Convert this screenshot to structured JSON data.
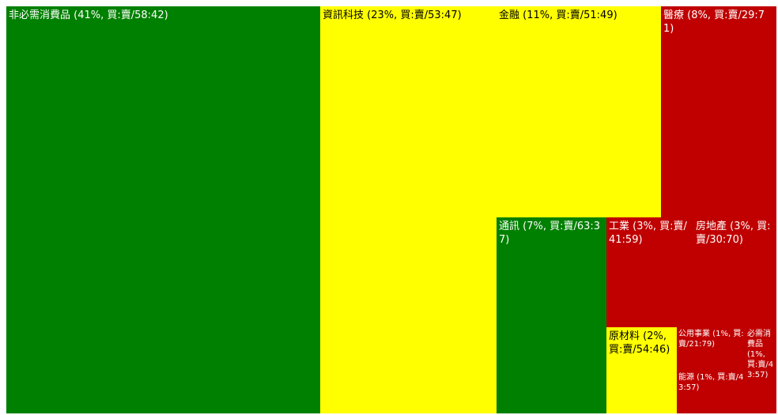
{
  "colors": {
    "buy_dominant": "#008000",
    "neutral": "#ffff00",
    "sell_dominant": "#c00000"
  },
  "chart_data": {
    "type": "treemap",
    "title": "",
    "items": [
      {
        "name": "非必需消費品",
        "label": "非必需消費品 (41%, 買:賣/58:42)",
        "share": 41,
        "buy": 58,
        "sell": 42,
        "color": "#008000"
      },
      {
        "name": "資訊科技",
        "label": "資訊科技 (23%, 買:賣/53:47)",
        "share": 23,
        "buy": 53,
        "sell": 47,
        "color": "#ffff00"
      },
      {
        "name": "金融",
        "label": "金融 (11%, 買:賣/51:49)",
        "share": 11,
        "buy": 51,
        "sell": 49,
        "color": "#ffff00"
      },
      {
        "name": "醫療",
        "label": "醫療 (8%, 買:賣/29:71)",
        "share": 8,
        "buy": 29,
        "sell": 71,
        "color": "#c00000"
      },
      {
        "name": "通訊",
        "label": "通訊 (7%, 買:賣/63:37)",
        "share": 7,
        "buy": 63,
        "sell": 37,
        "color": "#008000"
      },
      {
        "name": "工業",
        "label": "工業 (3%, 買:賣/41:59)",
        "share": 3,
        "buy": 41,
        "sell": 59,
        "color": "#c00000"
      },
      {
        "name": "房地產",
        "label": "房地產 (3%, 買:賣/30:70)",
        "share": 3,
        "buy": 30,
        "sell": 70,
        "color": "#c00000"
      },
      {
        "name": "原材料",
        "label": "原材料 (2%, 買:賣/54:46)",
        "share": 2,
        "buy": 54,
        "sell": 46,
        "color": "#ffff00"
      },
      {
        "name": "公用事業",
        "label": "公用事業 (1%, 買:賣/21:79)",
        "share": 1,
        "buy": 21,
        "sell": 79,
        "color": "#c00000"
      },
      {
        "name": "能源",
        "label": "能源 (1%, 買:賣/43:57)",
        "share": 1,
        "buy": 43,
        "sell": 57,
        "color": "#c00000"
      },
      {
        "name": "必需消費品",
        "label": "必需消費品 (1%, 買:賣/43:57)",
        "share": 1,
        "buy": 43,
        "sell": 57,
        "color": "#c00000"
      }
    ]
  }
}
